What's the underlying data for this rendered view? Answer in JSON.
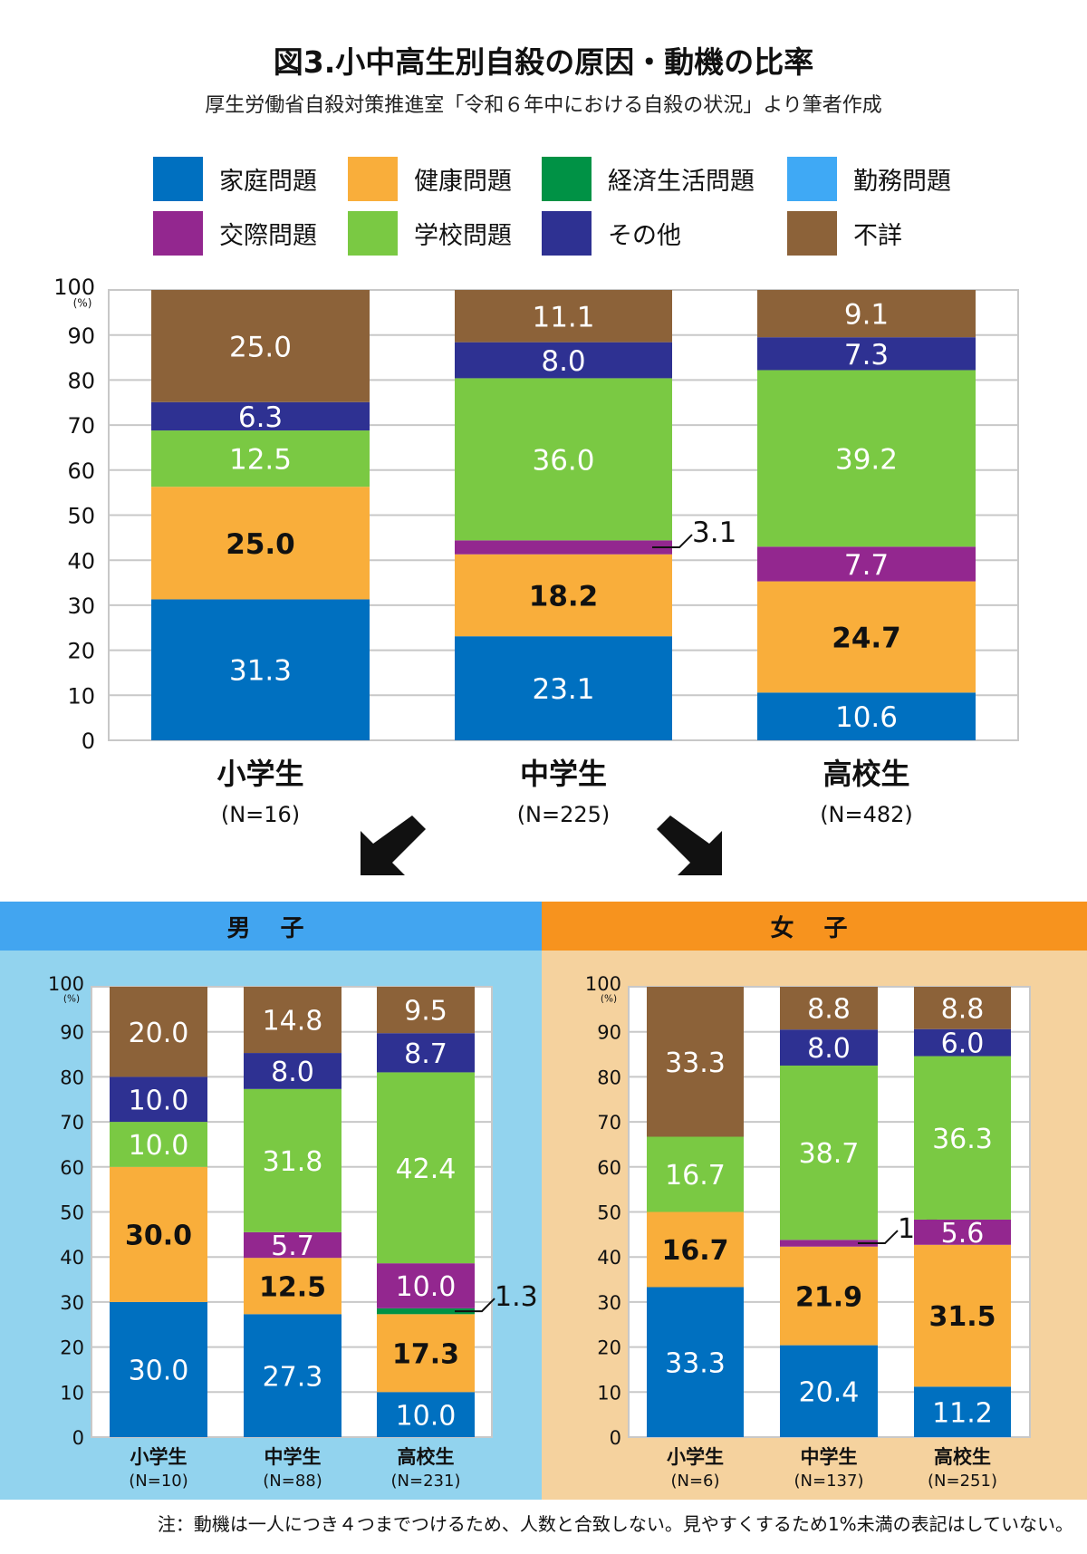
{
  "title": "図3.小中高生別自殺の原因・動機の比率",
  "subtitle": "厚生労働省自殺対策推進室「令和６年中における自殺の状況」より筆者作成",
  "legend": [
    {
      "label": "家庭問題",
      "color": "#0070c0"
    },
    {
      "label": "健康問題",
      "color": "#f9ae3b"
    },
    {
      "label": "経済生活問題",
      "color": "#009245"
    },
    {
      "label": "勤務問題",
      "color": "#3fa9f5"
    },
    {
      "label": "交際問題",
      "color": "#93278f"
    },
    {
      "label": "学校問題",
      "color": "#7ac943"
    },
    {
      "label": "その他",
      "color": "#2e3192"
    },
    {
      "label": "不詳",
      "color": "#8c6239"
    }
  ],
  "panels": {
    "male": {
      "label": "男 子",
      "header_color": "#42a5f0",
      "bg_color": "#92d3ee"
    },
    "female": {
      "label": "女 子",
      "header_color": "#f7931e",
      "bg_color": "#f5d29e"
    }
  },
  "note": "注：動機は一人につき４つまでつけるため、人数と合致しない。見やすくするため1%未満の表記はしていない。",
  "chart_data": [
    {
      "id": "all",
      "type": "bar",
      "stacked": true,
      "unit_label": "(%)",
      "ylim": [
        0,
        100
      ],
      "yticks": [
        0,
        10,
        20,
        30,
        40,
        50,
        60,
        70,
        80,
        90,
        100
      ],
      "grid": true,
      "categories": [
        "小学生",
        "中学生",
        "高校生"
      ],
      "n_labels": [
        "(N=16)",
        "(N=225)",
        "(N=482)"
      ],
      "series": [
        {
          "name": "家庭問題",
          "values": [
            31.3,
            23.1,
            10.6
          ]
        },
        {
          "name": "健康問題",
          "values": [
            25.0,
            18.2,
            24.7
          ]
        },
        {
          "name": "経済生活問題",
          "values": [
            null,
            null,
            null
          ]
        },
        {
          "name": "勤務問題",
          "values": [
            null,
            null,
            null
          ]
        },
        {
          "name": "交際問題",
          "values": [
            null,
            3.1,
            7.7
          ],
          "callout": [
            false,
            true,
            false
          ]
        },
        {
          "name": "学校問題",
          "values": [
            12.5,
            36.0,
            39.2
          ]
        },
        {
          "name": "その他",
          "values": [
            6.3,
            8.0,
            7.3
          ]
        },
        {
          "name": "不詳",
          "values": [
            25.0,
            11.1,
            9.1
          ]
        }
      ]
    },
    {
      "id": "male",
      "type": "bar",
      "stacked": true,
      "unit_label": "(%)",
      "ylim": [
        0,
        100
      ],
      "yticks": [
        0,
        10,
        20,
        30,
        40,
        50,
        60,
        70,
        80,
        90,
        100
      ],
      "grid": true,
      "categories": [
        "小学生",
        "中学生",
        "高校生"
      ],
      "n_labels": [
        "(N=10)",
        "(N=88)",
        "(N=231)"
      ],
      "series": [
        {
          "name": "家庭問題",
          "values": [
            30.0,
            27.3,
            10.0
          ]
        },
        {
          "name": "健康問題",
          "values": [
            30.0,
            12.5,
            17.3
          ]
        },
        {
          "name": "経済生活問題",
          "values": [
            null,
            null,
            1.3
          ],
          "callout": [
            false,
            false,
            true
          ]
        },
        {
          "name": "勤務問題",
          "values": [
            null,
            null,
            null
          ]
        },
        {
          "name": "交際問題",
          "values": [
            null,
            5.7,
            10.0
          ]
        },
        {
          "name": "学校問題",
          "values": [
            10.0,
            31.8,
            42.4
          ]
        },
        {
          "name": "その他",
          "values": [
            10.0,
            8.0,
            8.7
          ]
        },
        {
          "name": "不詳",
          "values": [
            20.0,
            14.8,
            9.5
          ]
        }
      ]
    },
    {
      "id": "female",
      "type": "bar",
      "stacked": true,
      "unit_label": "(%)",
      "ylim": [
        0,
        100
      ],
      "yticks": [
        0,
        10,
        20,
        30,
        40,
        50,
        60,
        70,
        80,
        90,
        100
      ],
      "grid": true,
      "categories": [
        "小学生",
        "中学生",
        "高校生"
      ],
      "n_labels": [
        "(N=6)",
        "(N=137)",
        "(N=251)"
      ],
      "series": [
        {
          "name": "家庭問題",
          "values": [
            33.3,
            20.4,
            11.2
          ]
        },
        {
          "name": "健康問題",
          "values": [
            16.7,
            21.9,
            31.5
          ]
        },
        {
          "name": "経済生活問題",
          "values": [
            null,
            null,
            null
          ]
        },
        {
          "name": "勤務問題",
          "values": [
            null,
            null,
            null
          ]
        },
        {
          "name": "交際問題",
          "values": [
            null,
            1.5,
            5.6
          ],
          "callout": [
            false,
            true,
            false
          ]
        },
        {
          "name": "学校問題",
          "values": [
            16.7,
            38.7,
            36.3
          ]
        },
        {
          "name": "その他",
          "values": [
            null,
            8.0,
            6.0
          ]
        },
        {
          "name": "不詳",
          "values": [
            33.3,
            8.8,
            8.8
          ]
        }
      ]
    }
  ]
}
